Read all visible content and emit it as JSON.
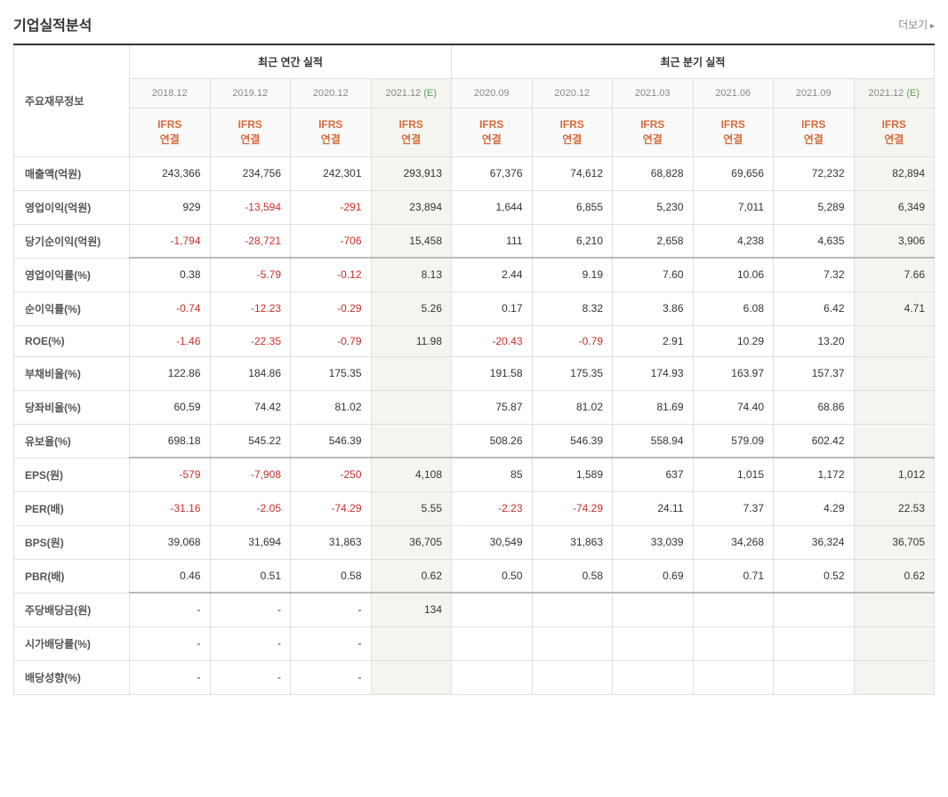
{
  "title": "기업실적분석",
  "more_link": "더보기",
  "header_groups": {
    "row_header": "주요재무정보",
    "annual": "최근 연간 실적",
    "quarterly": "최근 분기 실적"
  },
  "periods": {
    "annual": [
      {
        "label": "2018.12",
        "estimate": false
      },
      {
        "label": "2019.12",
        "estimate": false
      },
      {
        "label": "2020.12",
        "estimate": false
      },
      {
        "label": "2021.12",
        "estimate": true,
        "suffix": "(E)"
      }
    ],
    "quarterly": [
      {
        "label": "2020.09",
        "estimate": false
      },
      {
        "label": "2020.12",
        "estimate": false
      },
      {
        "label": "2021.03",
        "estimate": false
      },
      {
        "label": "2021.06",
        "estimate": false
      },
      {
        "label": "2021.09",
        "estimate": false
      },
      {
        "label": "2021.12",
        "estimate": true,
        "suffix": "(E)"
      }
    ]
  },
  "ifrs_label": "IFRS\n연결",
  "rows": [
    {
      "label": "매출액(억원)",
      "section": 0,
      "values": [
        "243,366",
        "234,756",
        "242,301",
        "293,913",
        "67,376",
        "74,612",
        "68,828",
        "69,656",
        "72,232",
        "82,894"
      ],
      "neg": [
        false,
        false,
        false,
        false,
        false,
        false,
        false,
        false,
        false,
        false
      ]
    },
    {
      "label": "영업이익(억원)",
      "section": 0,
      "values": [
        "929",
        "-13,594",
        "-291",
        "23,894",
        "1,644",
        "6,855",
        "5,230",
        "7,011",
        "5,289",
        "6,349"
      ],
      "neg": [
        false,
        true,
        true,
        false,
        false,
        false,
        false,
        false,
        false,
        false
      ]
    },
    {
      "label": "당기순이익(억원)",
      "section": 0,
      "values": [
        "-1,794",
        "-28,721",
        "-706",
        "15,458",
        "111",
        "6,210",
        "2,658",
        "4,238",
        "4,635",
        "3,906"
      ],
      "neg": [
        true,
        true,
        true,
        false,
        false,
        false,
        false,
        false,
        false,
        false
      ]
    },
    {
      "label": "영업이익률(%)",
      "section": 1,
      "values": [
        "0.38",
        "-5.79",
        "-0.12",
        "8.13",
        "2.44",
        "9.19",
        "7.60",
        "10.06",
        "7.32",
        "7.66"
      ],
      "neg": [
        false,
        true,
        true,
        false,
        false,
        false,
        false,
        false,
        false,
        false
      ]
    },
    {
      "label": "순이익률(%)",
      "section": 1,
      "values": [
        "-0.74",
        "-12.23",
        "-0.29",
        "5.26",
        "0.17",
        "8.32",
        "3.86",
        "6.08",
        "6.42",
        "4.71"
      ],
      "neg": [
        true,
        true,
        true,
        false,
        false,
        false,
        false,
        false,
        false,
        false
      ]
    },
    {
      "label": "ROE(%)",
      "section": 1,
      "values": [
        "-1.46",
        "-22.35",
        "-0.79",
        "11.98",
        "-20.43",
        "-0.79",
        "2.91",
        "10.29",
        "13.20",
        ""
      ],
      "neg": [
        true,
        true,
        true,
        false,
        true,
        true,
        false,
        false,
        false,
        false
      ]
    },
    {
      "label": "부채비율(%)",
      "section": 1,
      "values": [
        "122.86",
        "184.86",
        "175.35",
        "",
        "191.58",
        "175.35",
        "174.93",
        "163.97",
        "157.37",
        ""
      ],
      "neg": [
        false,
        false,
        false,
        false,
        false,
        false,
        false,
        false,
        false,
        false
      ]
    },
    {
      "label": "당좌비율(%)",
      "section": 1,
      "values": [
        "60.59",
        "74.42",
        "81.02",
        "",
        "75.87",
        "81.02",
        "81.69",
        "74.40",
        "68.86",
        ""
      ],
      "neg": [
        false,
        false,
        false,
        false,
        false,
        false,
        false,
        false,
        false,
        false
      ]
    },
    {
      "label": "유보율(%)",
      "section": 1,
      "values": [
        "698.18",
        "545.22",
        "546.39",
        "",
        "508.26",
        "546.39",
        "558.94",
        "579.09",
        "602.42",
        ""
      ],
      "neg": [
        false,
        false,
        false,
        false,
        false,
        false,
        false,
        false,
        false,
        false
      ]
    },
    {
      "label": "EPS(원)",
      "section": 2,
      "values": [
        "-579",
        "-7,908",
        "-250",
        "4,108",
        "85",
        "1,589",
        "637",
        "1,015",
        "1,172",
        "1,012"
      ],
      "neg": [
        true,
        true,
        true,
        false,
        false,
        false,
        false,
        false,
        false,
        false
      ]
    },
    {
      "label": "PER(배)",
      "section": 2,
      "values": [
        "-31.16",
        "-2.05",
        "-74.29",
        "5.55",
        "-2.23",
        "-74.29",
        "24.11",
        "7.37",
        "4.29",
        "22.53"
      ],
      "neg": [
        true,
        true,
        true,
        false,
        true,
        true,
        false,
        false,
        false,
        false
      ]
    },
    {
      "label": "BPS(원)",
      "section": 2,
      "values": [
        "39,068",
        "31,694",
        "31,863",
        "36,705",
        "30,549",
        "31,863",
        "33,039",
        "34,268",
        "36,324",
        "36,705"
      ],
      "neg": [
        false,
        false,
        false,
        false,
        false,
        false,
        false,
        false,
        false,
        false
      ]
    },
    {
      "label": "PBR(배)",
      "section": 2,
      "values": [
        "0.46",
        "0.51",
        "0.58",
        "0.62",
        "0.50",
        "0.58",
        "0.69",
        "0.71",
        "0.52",
        "0.62"
      ],
      "neg": [
        false,
        false,
        false,
        false,
        false,
        false,
        false,
        false,
        false,
        false
      ]
    },
    {
      "label": "주당배당금(원)",
      "section": 3,
      "values": [
        "-",
        "-",
        "-",
        "134",
        "",
        "",
        "",
        "",
        "",
        ""
      ],
      "neg": [
        false,
        false,
        false,
        false,
        false,
        false,
        false,
        false,
        false,
        false
      ]
    },
    {
      "label": "시가배당률(%)",
      "section": 3,
      "values": [
        "-",
        "-",
        "-",
        "",
        "",
        "",
        "",
        "",
        "",
        ""
      ],
      "neg": [
        false,
        false,
        false,
        false,
        false,
        false,
        false,
        false,
        false,
        false
      ]
    },
    {
      "label": "배당성향(%)",
      "section": 3,
      "values": [
        "-",
        "-",
        "-",
        "",
        "",
        "",
        "",
        "",
        "",
        ""
      ],
      "neg": [
        false,
        false,
        false,
        false,
        false,
        false,
        false,
        false,
        false,
        false
      ]
    }
  ],
  "estimate_col_indices": [
    3,
    9
  ]
}
